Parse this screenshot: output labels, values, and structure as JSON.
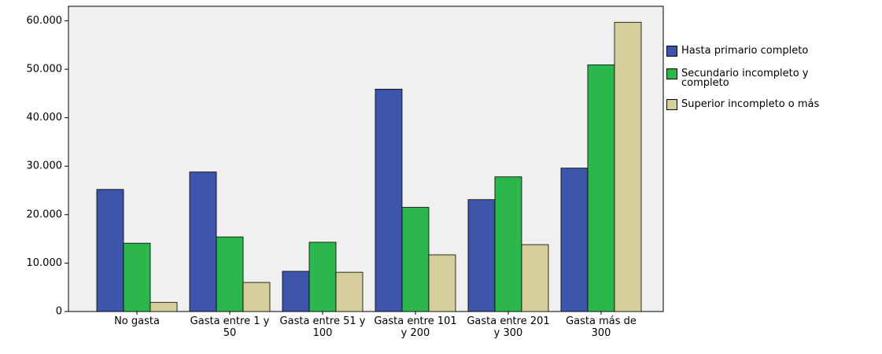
{
  "chart_data": {
    "type": "bar",
    "categories": [
      "No gasta",
      "Gasta entre 1 y 50",
      "Gasta entre 51 y 100",
      "Gasta entre 101 y 200",
      "Gasta entre 201 y 300",
      "Gasta más de 300"
    ],
    "series": [
      {
        "name": "Hasta primario completo",
        "color": "#3d55ab",
        "values": [
          25200,
          28800,
          8300,
          45900,
          23100,
          29600
        ]
      },
      {
        "name": "Secundario incompleto y completo",
        "color": "#2bb74b",
        "values": [
          14100,
          15400,
          14300,
          21500,
          27800,
          50900
        ]
      },
      {
        "name": "Superior incompleto o más",
        "color": "#d6cf9b",
        "values": [
          1900,
          6000,
          8100,
          11700,
          13800,
          59700
        ]
      }
    ],
    "ylim": [
      0,
      63000
    ],
    "yticks": [
      0,
      {
        "value": 10000,
        "label": "10.000"
      },
      {
        "value": 20000,
        "label": "20.000"
      },
      {
        "value": 30000,
        "label": "30.000"
      },
      {
        "value": 40000,
        "label": "40.000"
      },
      {
        "value": 50000,
        "label": "50.000"
      },
      {
        "value": 60000,
        "label": "60.000"
      }
    ],
    "legend": "right"
  }
}
